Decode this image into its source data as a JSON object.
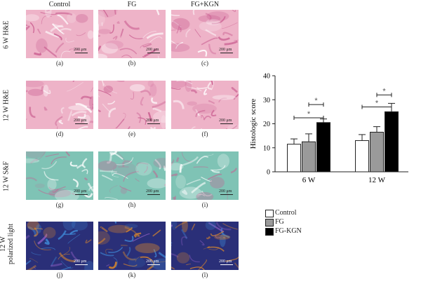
{
  "figure": {
    "column_headers": [
      "Control",
      "FG",
      "FG+KGN"
    ],
    "row_labels": [
      "6 W H&E",
      "12 W H&E",
      "12 W S&F",
      "12 W polarized light"
    ],
    "row_label_lines": [
      [
        "6 W H&E"
      ],
      [
        "12 W H&E"
      ],
      [
        "12 W S&F"
      ],
      [
        "12 W",
        "polarized light"
      ]
    ],
    "scale_label": "200 μm",
    "panel_letters": [
      "(a)",
      "(b)",
      "(c)",
      "(d)",
      "(e)",
      "(f)",
      "(g)",
      "(h)",
      "(i)",
      "(j)",
      "(k)",
      "(l)"
    ],
    "stain_colors": {
      "he_base": "#eeb3c8",
      "he_dark": "#c85a8e",
      "sf_base": "#7fc3b5",
      "sf_dark": "#b4789a",
      "pol_base": "#2a2f78",
      "pol_orange": "#e08a2a",
      "pol_blue": "#3f8ad8"
    }
  },
  "chart_data": {
    "type": "bar",
    "categories": [
      "6 W",
      "12 W"
    ],
    "ylabel": "Histologic score",
    "xlabel": "",
    "ylim": [
      0,
      40
    ],
    "yticks": [
      0,
      10,
      20,
      30,
      40
    ],
    "series": [
      {
        "name": "Control",
        "values": [
          11.5,
          13
        ],
        "errors": [
          2.2,
          2.5
        ],
        "fill": "#ffffff"
      },
      {
        "name": "FG",
        "values": [
          12.5,
          16.5
        ],
        "errors": [
          3.3,
          2.3
        ],
        "fill": "#9a9a9a"
      },
      {
        "name": "FG-KGN",
        "values": [
          20.5,
          25
        ],
        "errors": [
          1.5,
          3.5
        ],
        "fill": "#000000"
      }
    ],
    "significance": [
      {
        "group": "6 W",
        "from": "FG",
        "to": "FG-KGN",
        "y": 28,
        "label": "*"
      },
      {
        "group": "6 W",
        "from": "Control",
        "to": "FG-KGN",
        "y": 22.5,
        "label": "*"
      },
      {
        "group": "12 W",
        "from": "FG",
        "to": "FG-KGN",
        "y": 32,
        "label": "*"
      },
      {
        "group": "12 W",
        "from": "Control",
        "to": "FG-KGN",
        "y": 27,
        "label": "*"
      }
    ],
    "legend_position": "bottom-left"
  }
}
